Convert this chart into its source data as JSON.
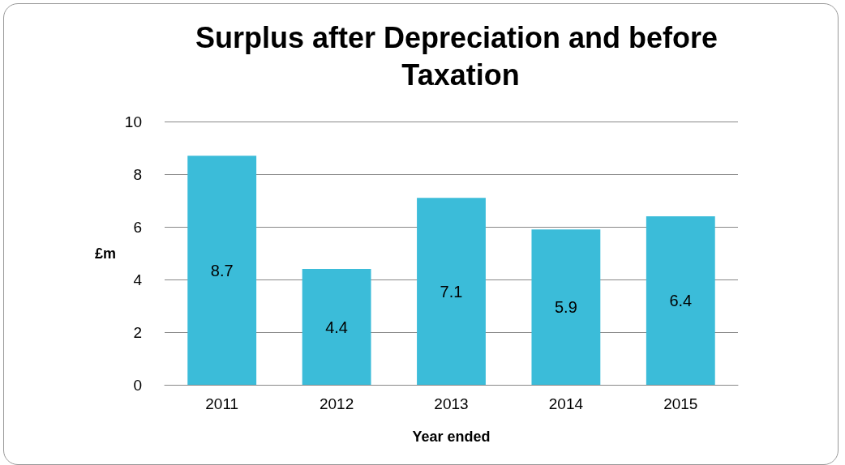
{
  "chart_data": {
    "type": "bar",
    "title": "Surplus after Depreciation and before Taxation",
    "xlabel": "Year ended",
    "ylabel": "£m",
    "categories": [
      "2011",
      "2012",
      "2013",
      "2014",
      "2015"
    ],
    "values": [
      8.7,
      4.4,
      7.1,
      5.9,
      6.4
    ],
    "color": "#3bbcd9",
    "ylim": [
      0,
      10
    ],
    "yticks": [
      0,
      2,
      4,
      6,
      8,
      10
    ],
    "grid": "y",
    "data_labels": true
  }
}
